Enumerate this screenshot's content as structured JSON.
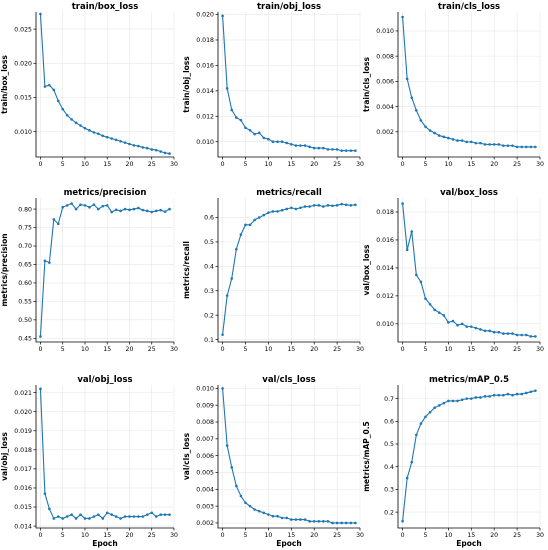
{
  "chart_data": [
    {
      "type": "line",
      "title": "train/box_loss",
      "xlabel": "",
      "ylabel": "train/box_loss",
      "xlim": [
        -1,
        30
      ],
      "ylim": [
        0.0063,
        0.0275
      ],
      "xticks": [
        0,
        5,
        10,
        15,
        20,
        25,
        30
      ],
      "yticks": [
        0.01,
        0.015,
        0.02,
        0.025
      ],
      "ytick_labels": [
        "0.010",
        "0.015",
        "0.020",
        "0.025"
      ],
      "grid": true,
      "x": [
        0,
        1,
        2,
        3,
        4,
        5,
        6,
        7,
        8,
        9,
        10,
        11,
        12,
        13,
        14,
        15,
        16,
        17,
        18,
        19,
        20,
        21,
        22,
        23,
        24,
        25,
        26,
        27,
        28,
        29
      ],
      "values": [
        0.0272,
        0.0166,
        0.0168,
        0.0161,
        0.0145,
        0.0133,
        0.0124,
        0.0118,
        0.0113,
        0.0109,
        0.0105,
        0.0102,
        0.0099,
        0.0097,
        0.0094,
        0.0092,
        0.009,
        0.0088,
        0.0086,
        0.0084,
        0.0082,
        0.008,
        0.0079,
        0.0077,
        0.0076,
        0.0074,
        0.0073,
        0.0071,
        0.0069,
        0.0068
      ]
    },
    {
      "type": "line",
      "title": "train/obj_loss",
      "xlabel": "",
      "ylabel": "train/obj_loss",
      "xlim": [
        -1,
        30
      ],
      "ylim": [
        0.0088,
        0.0202
      ],
      "xticks": [
        0,
        5,
        10,
        15,
        20,
        25,
        30
      ],
      "yticks": [
        0.01,
        0.012,
        0.014,
        0.016,
        0.018,
        0.02
      ],
      "ytick_labels": [
        "0.010",
        "0.012",
        "0.014",
        "0.016",
        "0.018",
        "0.020"
      ],
      "grid": true,
      "x": [
        0,
        1,
        2,
        3,
        4,
        5,
        6,
        7,
        8,
        9,
        10,
        11,
        12,
        13,
        14,
        15,
        16,
        17,
        18,
        19,
        20,
        21,
        22,
        23,
        24,
        25,
        26,
        27,
        28,
        29
      ],
      "values": [
        0.0199,
        0.0142,
        0.0125,
        0.0119,
        0.0117,
        0.0111,
        0.0109,
        0.0106,
        0.0107,
        0.0103,
        0.0102,
        0.01,
        0.01,
        0.01,
        0.0099,
        0.0098,
        0.0097,
        0.0097,
        0.0097,
        0.0096,
        0.0095,
        0.0095,
        0.0095,
        0.0094,
        0.0094,
        0.0094,
        0.0093,
        0.0093,
        0.0093,
        0.0093
      ]
    },
    {
      "type": "line",
      "title": "train/cls_loss",
      "xlabel": "",
      "ylabel": "train/cls_loss",
      "xlim": [
        -1,
        30
      ],
      "ylim": [
        0.0,
        0.0115
      ],
      "xticks": [
        0,
        5,
        10,
        15,
        20,
        25,
        30
      ],
      "yticks": [
        0.002,
        0.004,
        0.006,
        0.008,
        0.01
      ],
      "ytick_labels": [
        "0.002",
        "0.004",
        "0.006",
        "0.008",
        "0.010"
      ],
      "grid": true,
      "x": [
        0,
        1,
        2,
        3,
        4,
        5,
        6,
        7,
        8,
        9,
        10,
        11,
        12,
        13,
        14,
        15,
        16,
        17,
        18,
        19,
        20,
        21,
        22,
        23,
        24,
        25,
        26,
        27,
        28,
        29
      ],
      "values": [
        0.0111,
        0.0062,
        0.0047,
        0.0037,
        0.0029,
        0.0024,
        0.0021,
        0.0019,
        0.0017,
        0.0016,
        0.0015,
        0.0014,
        0.0013,
        0.0013,
        0.0012,
        0.0012,
        0.0011,
        0.0011,
        0.001,
        0.001,
        0.001,
        0.001,
        0.0009,
        0.0009,
        0.0009,
        0.0008,
        0.0008,
        0.0008,
        0.0008,
        0.0008
      ]
    },
    {
      "type": "line",
      "title": "metrics/precision",
      "xlabel": "",
      "ylabel": "metrics/precision",
      "xlim": [
        -1,
        30
      ],
      "ylim": [
        0.44,
        0.83
      ],
      "xticks": [
        0,
        5,
        10,
        15,
        20,
        25,
        30
      ],
      "yticks": [
        0.45,
        0.5,
        0.55,
        0.6,
        0.65,
        0.7,
        0.75,
        0.8
      ],
      "ytick_labels": [
        "0.45",
        "0.50",
        "0.55",
        "0.60",
        "0.65",
        "0.70",
        "0.75",
        "0.80"
      ],
      "grid": true,
      "x": [
        0,
        1,
        2,
        3,
        4,
        5,
        6,
        7,
        8,
        9,
        10,
        11,
        12,
        13,
        14,
        15,
        16,
        17,
        18,
        19,
        20,
        21,
        22,
        23,
        24,
        25,
        26,
        27,
        28,
        29
      ],
      "values": [
        0.455,
        0.66,
        0.655,
        0.772,
        0.76,
        0.805,
        0.81,
        0.815,
        0.8,
        0.812,
        0.81,
        0.805,
        0.812,
        0.8,
        0.808,
        0.81,
        0.792,
        0.798,
        0.795,
        0.8,
        0.798,
        0.8,
        0.803,
        0.797,
        0.795,
        0.792,
        0.795,
        0.797,
        0.793,
        0.8
      ]
    },
    {
      "type": "line",
      "title": "metrics/recall",
      "xlabel": "",
      "ylabel": "metrics/recall",
      "xlim": [
        -1,
        30
      ],
      "ylim": [
        0.09,
        0.68
      ],
      "xticks": [
        0,
        5,
        10,
        15,
        20,
        25,
        30
      ],
      "yticks": [
        0.1,
        0.2,
        0.3,
        0.4,
        0.5,
        0.6
      ],
      "ytick_labels": [
        "0.1",
        "0.2",
        "0.3",
        "0.4",
        "0.5",
        "0.6"
      ],
      "grid": true,
      "x": [
        0,
        1,
        2,
        3,
        4,
        5,
        6,
        7,
        8,
        9,
        10,
        11,
        12,
        13,
        14,
        15,
        16,
        17,
        18,
        19,
        20,
        21,
        22,
        23,
        24,
        25,
        26,
        27,
        28,
        29
      ],
      "values": [
        0.12,
        0.28,
        0.35,
        0.47,
        0.53,
        0.57,
        0.57,
        0.59,
        0.6,
        0.61,
        0.62,
        0.625,
        0.625,
        0.63,
        0.635,
        0.64,
        0.635,
        0.64,
        0.645,
        0.645,
        0.65,
        0.65,
        0.645,
        0.65,
        0.648,
        0.65,
        0.655,
        0.652,
        0.65,
        0.652
      ]
    },
    {
      "type": "line",
      "title": "val/box_loss",
      "xlabel": "",
      "ylabel": "val/box_loss",
      "xlim": [
        -1,
        30
      ],
      "ylim": [
        0.0087,
        0.019
      ],
      "xticks": [
        0,
        5,
        10,
        15,
        20,
        25,
        30
      ],
      "yticks": [
        0.01,
        0.012,
        0.014,
        0.016,
        0.018
      ],
      "ytick_labels": [
        "0.010",
        "0.012",
        "0.014",
        "0.016",
        "0.018"
      ],
      "grid": true,
      "x": [
        0,
        1,
        2,
        3,
        4,
        5,
        6,
        7,
        8,
        9,
        10,
        11,
        12,
        13,
        14,
        15,
        16,
        17,
        18,
        19,
        20,
        21,
        22,
        23,
        24,
        25,
        26,
        27,
        28,
        29
      ],
      "values": [
        0.0186,
        0.0153,
        0.0166,
        0.0135,
        0.013,
        0.0118,
        0.0114,
        0.011,
        0.0108,
        0.0106,
        0.0101,
        0.0102,
        0.0099,
        0.01,
        0.0098,
        0.0098,
        0.0097,
        0.0096,
        0.0095,
        0.0095,
        0.0094,
        0.0094,
        0.0093,
        0.0093,
        0.0093,
        0.0092,
        0.0092,
        0.0092,
        0.0091,
        0.0091
      ]
    },
    {
      "type": "line",
      "title": "val/obj_loss",
      "xlabel": "Epoch",
      "ylabel": "val/obj_loss",
      "xlim": [
        -1,
        30
      ],
      "ylim": [
        0.0139,
        0.0214
      ],
      "xticks": [
        0,
        5,
        10,
        15,
        20,
        25,
        30
      ],
      "yticks": [
        0.014,
        0.015,
        0.016,
        0.017,
        0.018,
        0.019,
        0.02,
        0.021
      ],
      "ytick_labels": [
        "0.014",
        "0.015",
        "0.016",
        "0.017",
        "0.018",
        "0.019",
        "0.020",
        "0.021"
      ],
      "grid": true,
      "x": [
        0,
        1,
        2,
        3,
        4,
        5,
        6,
        7,
        8,
        9,
        10,
        11,
        12,
        13,
        14,
        15,
        16,
        17,
        18,
        19,
        20,
        21,
        22,
        23,
        24,
        25,
        26,
        27,
        28,
        29
      ],
      "values": [
        0.0212,
        0.0157,
        0.0149,
        0.0144,
        0.0145,
        0.0144,
        0.0145,
        0.0146,
        0.0144,
        0.0146,
        0.0144,
        0.0144,
        0.0145,
        0.0146,
        0.0144,
        0.0147,
        0.0146,
        0.0145,
        0.0144,
        0.0145,
        0.0145,
        0.0145,
        0.0145,
        0.0145,
        0.0146,
        0.0147,
        0.0145,
        0.0146,
        0.0146,
        0.0146
      ]
    },
    {
      "type": "line",
      "title": "val/cls_loss",
      "xlabel": "Epoch",
      "ylabel": "val/cls_loss",
      "xlim": [
        -1,
        30
      ],
      "ylim": [
        0.0017,
        0.0102
      ],
      "xticks": [
        0,
        5,
        10,
        15,
        20,
        25,
        30
      ],
      "yticks": [
        0.002,
        0.003,
        0.004,
        0.005,
        0.006,
        0.007,
        0.008,
        0.009,
        0.01
      ],
      "ytick_labels": [
        "0.002",
        "0.003",
        "0.004",
        "0.005",
        "0.006",
        "0.007",
        "0.008",
        "0.009",
        "0.010"
      ],
      "grid": true,
      "x": [
        0,
        1,
        2,
        3,
        4,
        5,
        6,
        7,
        8,
        9,
        10,
        11,
        12,
        13,
        14,
        15,
        16,
        17,
        18,
        19,
        20,
        21,
        22,
        23,
        24,
        25,
        26,
        27,
        28,
        29
      ],
      "values": [
        0.01,
        0.0066,
        0.0053,
        0.0042,
        0.0036,
        0.0032,
        0.003,
        0.0028,
        0.0027,
        0.0026,
        0.0025,
        0.0024,
        0.0024,
        0.0023,
        0.0023,
        0.0022,
        0.0022,
        0.0022,
        0.0022,
        0.0021,
        0.0021,
        0.0021,
        0.0021,
        0.0021,
        0.002,
        0.002,
        0.002,
        0.002,
        0.002,
        0.002
      ]
    },
    {
      "type": "line",
      "title": "metrics/mAP_0.5",
      "xlabel": "Epoch",
      "ylabel": "metrics/mAP_0.5",
      "xlim": [
        -1,
        30
      ],
      "ylim": [
        0.13,
        0.76
      ],
      "xticks": [
        0,
        5,
        10,
        15,
        20,
        25,
        30
      ],
      "yticks": [
        0.2,
        0.3,
        0.4,
        0.5,
        0.6,
        0.7
      ],
      "ytick_labels": [
        "0.2",
        "0.3",
        "0.4",
        "0.5",
        "0.6",
        "0.7"
      ],
      "grid": true,
      "x": [
        0,
        1,
        2,
        3,
        4,
        5,
        6,
        7,
        8,
        9,
        10,
        11,
        12,
        13,
        14,
        15,
        16,
        17,
        18,
        19,
        20,
        21,
        22,
        23,
        24,
        25,
        26,
        27,
        28,
        29
      ],
      "values": [
        0.16,
        0.35,
        0.42,
        0.54,
        0.59,
        0.62,
        0.64,
        0.66,
        0.67,
        0.68,
        0.69,
        0.69,
        0.69,
        0.695,
        0.7,
        0.7,
        0.705,
        0.705,
        0.71,
        0.71,
        0.715,
        0.715,
        0.715,
        0.72,
        0.715,
        0.72,
        0.72,
        0.725,
        0.73,
        0.735
      ]
    }
  ]
}
